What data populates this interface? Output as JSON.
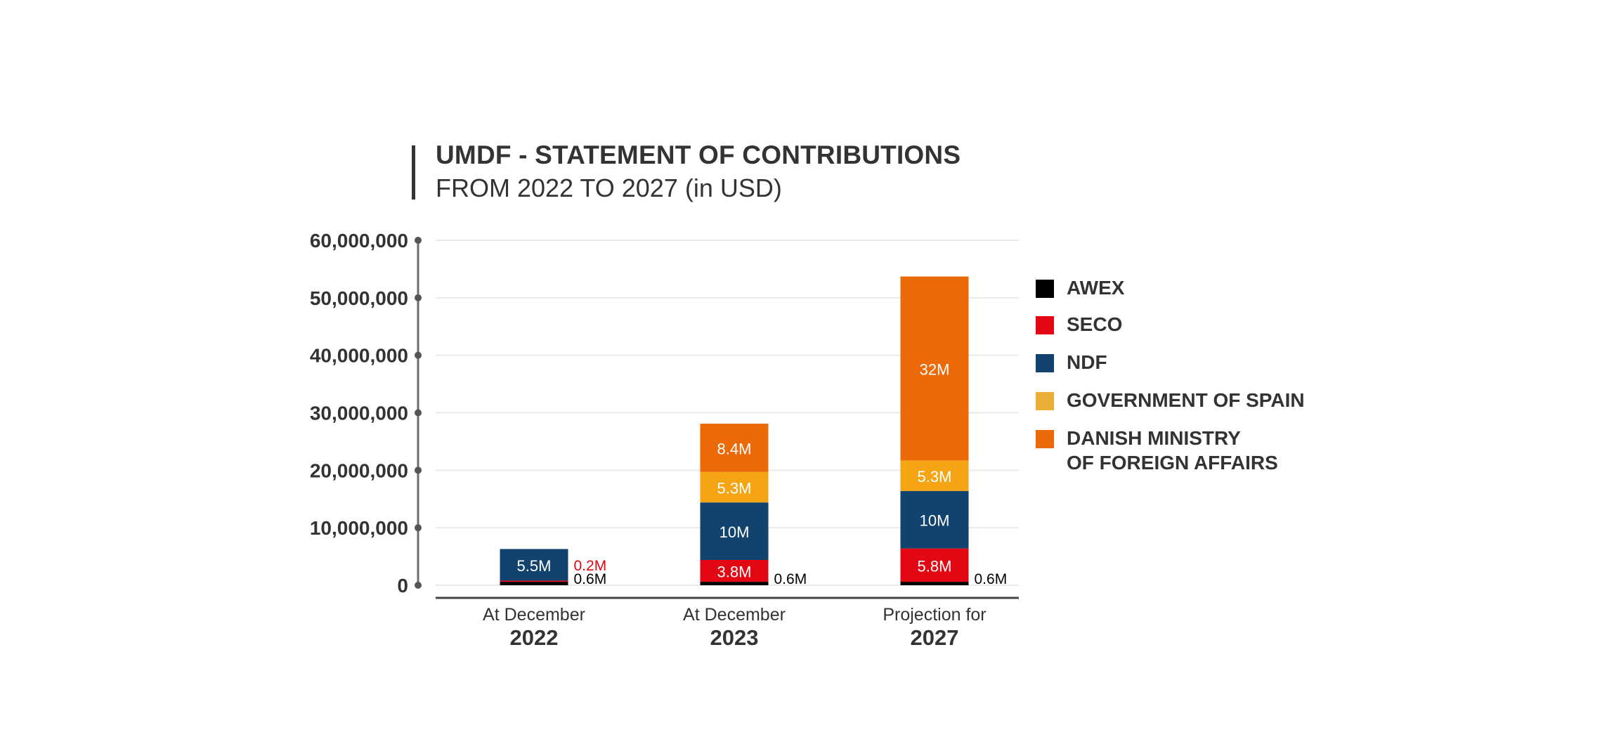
{
  "title": "UMDF - STATEMENT OF CONTRIBUTIONS",
  "subtitle": "FROM 2022 TO 2027 (in USD)",
  "chart_data": {
    "type": "bar",
    "stacked": true,
    "title": "UMDF - STATEMENT OF CONTRIBUTIONS",
    "subtitle": "FROM 2022 TO 2027 (in USD)",
    "xlabel": "",
    "ylabel": "",
    "ylim": [
      0,
      60000000
    ],
    "yticks": [
      0,
      10000000,
      20000000,
      30000000,
      40000000,
      50000000,
      60000000
    ],
    "ytick_labels": [
      "0",
      "10,000,000",
      "20,000,000",
      "30,000,000",
      "40,000,000",
      "50,000,000",
      "60,000,000"
    ],
    "grid": true,
    "legend_position": "right",
    "categories": [
      {
        "line1": "At December",
        "line2": "2022"
      },
      {
        "line1": "At December",
        "line2": "2023"
      },
      {
        "line1": "Projection for",
        "line2": "2027"
      }
    ],
    "series": [
      {
        "name": "AWEX",
        "color": "#000000",
        "values": [
          600000,
          600000,
          600000
        ],
        "labels": [
          "0.6M",
          "0.6M",
          "0.6M"
        ],
        "label_outside": [
          true,
          true,
          true
        ],
        "label_color": "#000000"
      },
      {
        "name": "SECO",
        "color": "#e30613",
        "values": [
          200000,
          3800000,
          5800000
        ],
        "labels": [
          "0.2M",
          "3.8M",
          "5.8M"
        ],
        "label_outside": [
          true,
          false,
          false
        ],
        "label_color": "#e30613"
      },
      {
        "name": "NDF",
        "color": "#12426e",
        "values": [
          5500000,
          10000000,
          10000000
        ],
        "labels": [
          "5.5M",
          "10M",
          "10M"
        ],
        "label_outside": [
          false,
          false,
          false
        ]
      },
      {
        "name": "GOVERNMENT OF SPAIN",
        "color": "#f5a514",
        "legend_color": "#e9ae33",
        "values": [
          0,
          5300000,
          5300000
        ],
        "labels": [
          "",
          "5.3M",
          "5.3M"
        ],
        "label_outside": [
          false,
          false,
          false
        ]
      },
      {
        "name": "DANISH MINISTRY\nOF FOREIGN AFFAIRS",
        "legend_lines": [
          "DANISH MINISTRY",
          "OF FOREIGN AFFAIRS"
        ],
        "color": "#ec6907",
        "values": [
          0,
          8400000,
          32000000
        ],
        "labels": [
          "",
          "8.4M",
          "32M"
        ],
        "label_outside": [
          false,
          false,
          false
        ]
      }
    ]
  },
  "colors": {
    "text": "#333333",
    "axis": "#6e6e6e",
    "grid": "#e9e9e9",
    "inside_label": "#ffffff"
  }
}
